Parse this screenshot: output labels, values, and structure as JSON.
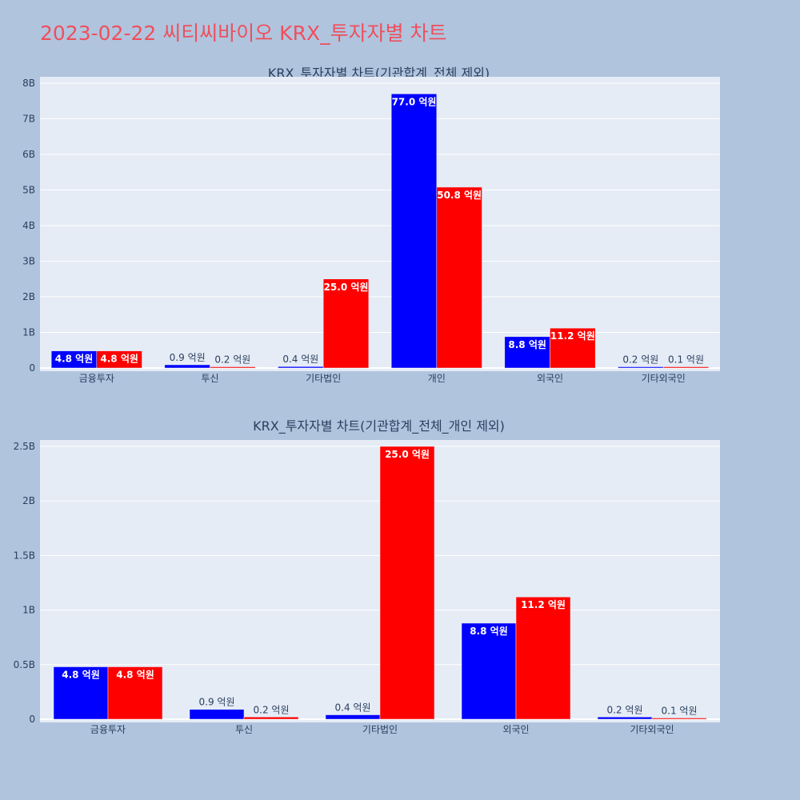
{
  "page": {
    "title": "2023-02-22 씨티씨바이오 KRX_투자자별 차트"
  },
  "colors": {
    "background": "#b0c4de",
    "plot_bg": "#e5ecf6",
    "title": "#ef4f5c",
    "text": "#2a3f5f",
    "series_buy": "#0000ff",
    "series_sell": "#ff0000"
  },
  "chart_data": [
    {
      "type": "bar",
      "title": "KRX_투자자별 차트(기관합계_전체 제외)",
      "categories": [
        "금융투자",
        "투신",
        "기타법인",
        "개인",
        "외국인",
        "기타외국인"
      ],
      "series": [
        {
          "color": "#0000ff",
          "values": [
            480000000,
            90000000,
            40000000,
            7700000000,
            880000000,
            20000000
          ],
          "labels": [
            "4.8 억원",
            "0.9 억원",
            "0.4 억원",
            "77.0 억원",
            "8.8 억원",
            "0.2 억원"
          ]
        },
        {
          "color": "#ff0000",
          "values": [
            480000000,
            20000000,
            2500000000,
            5080000000,
            1120000000,
            10000000
          ],
          "labels": [
            "4.8 억원",
            "0.2 억원",
            "25.0 억원",
            "50.8 억원",
            "11.2 억원",
            "0.1 억원"
          ]
        }
      ],
      "ylim": [
        0,
        8000000000
      ],
      "yticks": [
        0,
        1000000000,
        2000000000,
        3000000000,
        4000000000,
        5000000000,
        6000000000,
        7000000000,
        8000000000
      ],
      "ytick_labels": [
        "0",
        "1B",
        "2B",
        "3B",
        "4B",
        "5B",
        "6B",
        "7B",
        "8B"
      ],
      "grid": true
    },
    {
      "type": "bar",
      "title": "KRX_투자자별 차트(기관합계_전체_개인 제외)",
      "categories": [
        "금융투자",
        "투신",
        "기타법인",
        "외국인",
        "기타외국인"
      ],
      "series": [
        {
          "color": "#0000ff",
          "values": [
            480000000,
            90000000,
            40000000,
            880000000,
            20000000
          ],
          "labels": [
            "4.8 억원",
            "0.9 억원",
            "0.4 억원",
            "8.8 억원",
            "0.2 억원"
          ]
        },
        {
          "color": "#ff0000",
          "values": [
            480000000,
            20000000,
            2500000000,
            1120000000,
            10000000
          ],
          "labels": [
            "4.8 억원",
            "0.2 억원",
            "25.0 억원",
            "11.2 억원",
            "0.1 억원"
          ]
        }
      ],
      "ylim": [
        0,
        2500000000
      ],
      "yticks": [
        0,
        500000000,
        1000000000,
        1500000000,
        2000000000,
        2500000000
      ],
      "ytick_labels": [
        "0",
        "0.5B",
        "1B",
        "1.5B",
        "2B",
        "2.5B"
      ],
      "grid": true
    }
  ]
}
